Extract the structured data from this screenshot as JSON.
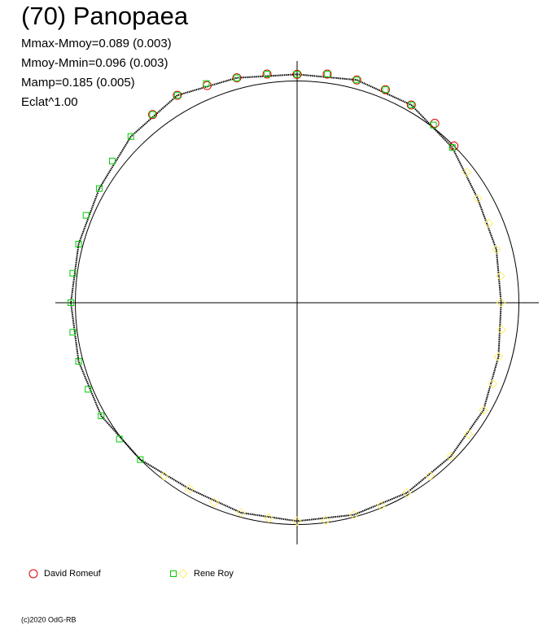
{
  "chart_data": {
    "type": "polar",
    "title": "(70) Panopaea",
    "annotations": [
      "Mmax-Mmoy=0.089 (0.003)",
      "Mmoy-Mmin=0.096 (0.003)",
      "Mamp=0.185 (0.005)",
      "Eclat^1.00"
    ],
    "footer": "(c)2020 OdG-RB",
    "rlim": [
      0,
      1.09
    ],
    "reference_radius": 1,
    "curve": {
      "color": "#000000",
      "x": [
        0,
        15,
        30,
        45,
        60,
        75,
        90,
        105,
        120,
        135,
        150,
        165,
        180,
        195,
        210,
        225,
        240,
        255,
        270,
        285,
        300,
        315,
        330,
        345,
        360
      ],
      "values": [
        0.92,
        0.93,
        0.94,
        0.99,
        1.03,
        1.04,
        1.03,
        1.05,
        1.08,
        1.06,
        1.03,
        1.02,
        1.02,
        1.02,
        1.02,
        1.0,
        0.97,
        0.98,
        0.985,
        0.99,
        0.99,
        0.98,
        0.97,
        0.94,
        0.92
      ]
    },
    "series": [
      {
        "name": "David Romeuf",
        "sessions": [
          {
            "color": "#dd0000",
            "marker": "circle",
            "x": [
              45,
              52.5,
              60,
              67.5,
              75,
              82.5,
              90,
              97.5,
              105,
              112.5,
              120,
              127.5
            ],
            "values": [
              1.0,
              1.02,
              1.03,
              1.04,
              1.04,
              1.04,
              1.03,
              1.04,
              1.05,
              1.06,
              1.08,
              1.07
            ]
          }
        ]
      },
      {
        "name": "Rene Roy",
        "sessions": [
          {
            "color": "#00cc00",
            "marker": "square",
            "x": [
              45,
              52.5,
              60,
              67.5,
              75,
              82.5,
              90,
              97.5,
              105,
              112.5,
              120,
              127.5,
              135,
              142.5,
              150,
              157.5,
              165,
              172.5,
              180,
              187.5,
              195,
              202.5,
              210,
              217.5,
              225
            ],
            "values": [
              0.99,
              1.01,
              1.03,
              1.04,
              1.04,
              1.04,
              1.03,
              1.04,
              1.05,
              1.07,
              1.08,
              1.07,
              1.06,
              1.05,
              1.03,
              1.03,
              1.02,
              1.02,
              1.02,
              1.02,
              1.02,
              1.02,
              1.02,
              1.01,
              1.0
            ]
          },
          {
            "color": "#ffee66",
            "marker": "diamond",
            "x": [
              -127.5,
              -120,
              -112.5,
              -105,
              -97.5,
              -90,
              -82.5,
              -75,
              -67.5,
              -60,
              -52.5,
              -45,
              -37.5,
              -30,
              -22.5,
              -15,
              -7.5,
              0,
              7.5,
              15,
              22.5,
              30,
              37.5
            ],
            "values": [
              0.985,
              0.97,
              0.975,
              0.98,
              0.98,
              0.985,
              0.99,
              0.99,
              0.99,
              0.99,
              0.985,
              0.98,
              0.975,
              0.97,
              0.955,
              0.94,
              0.93,
              0.92,
              0.925,
              0.93,
              0.935,
              0.94,
              0.965
            ]
          }
        ]
      }
    ]
  }
}
